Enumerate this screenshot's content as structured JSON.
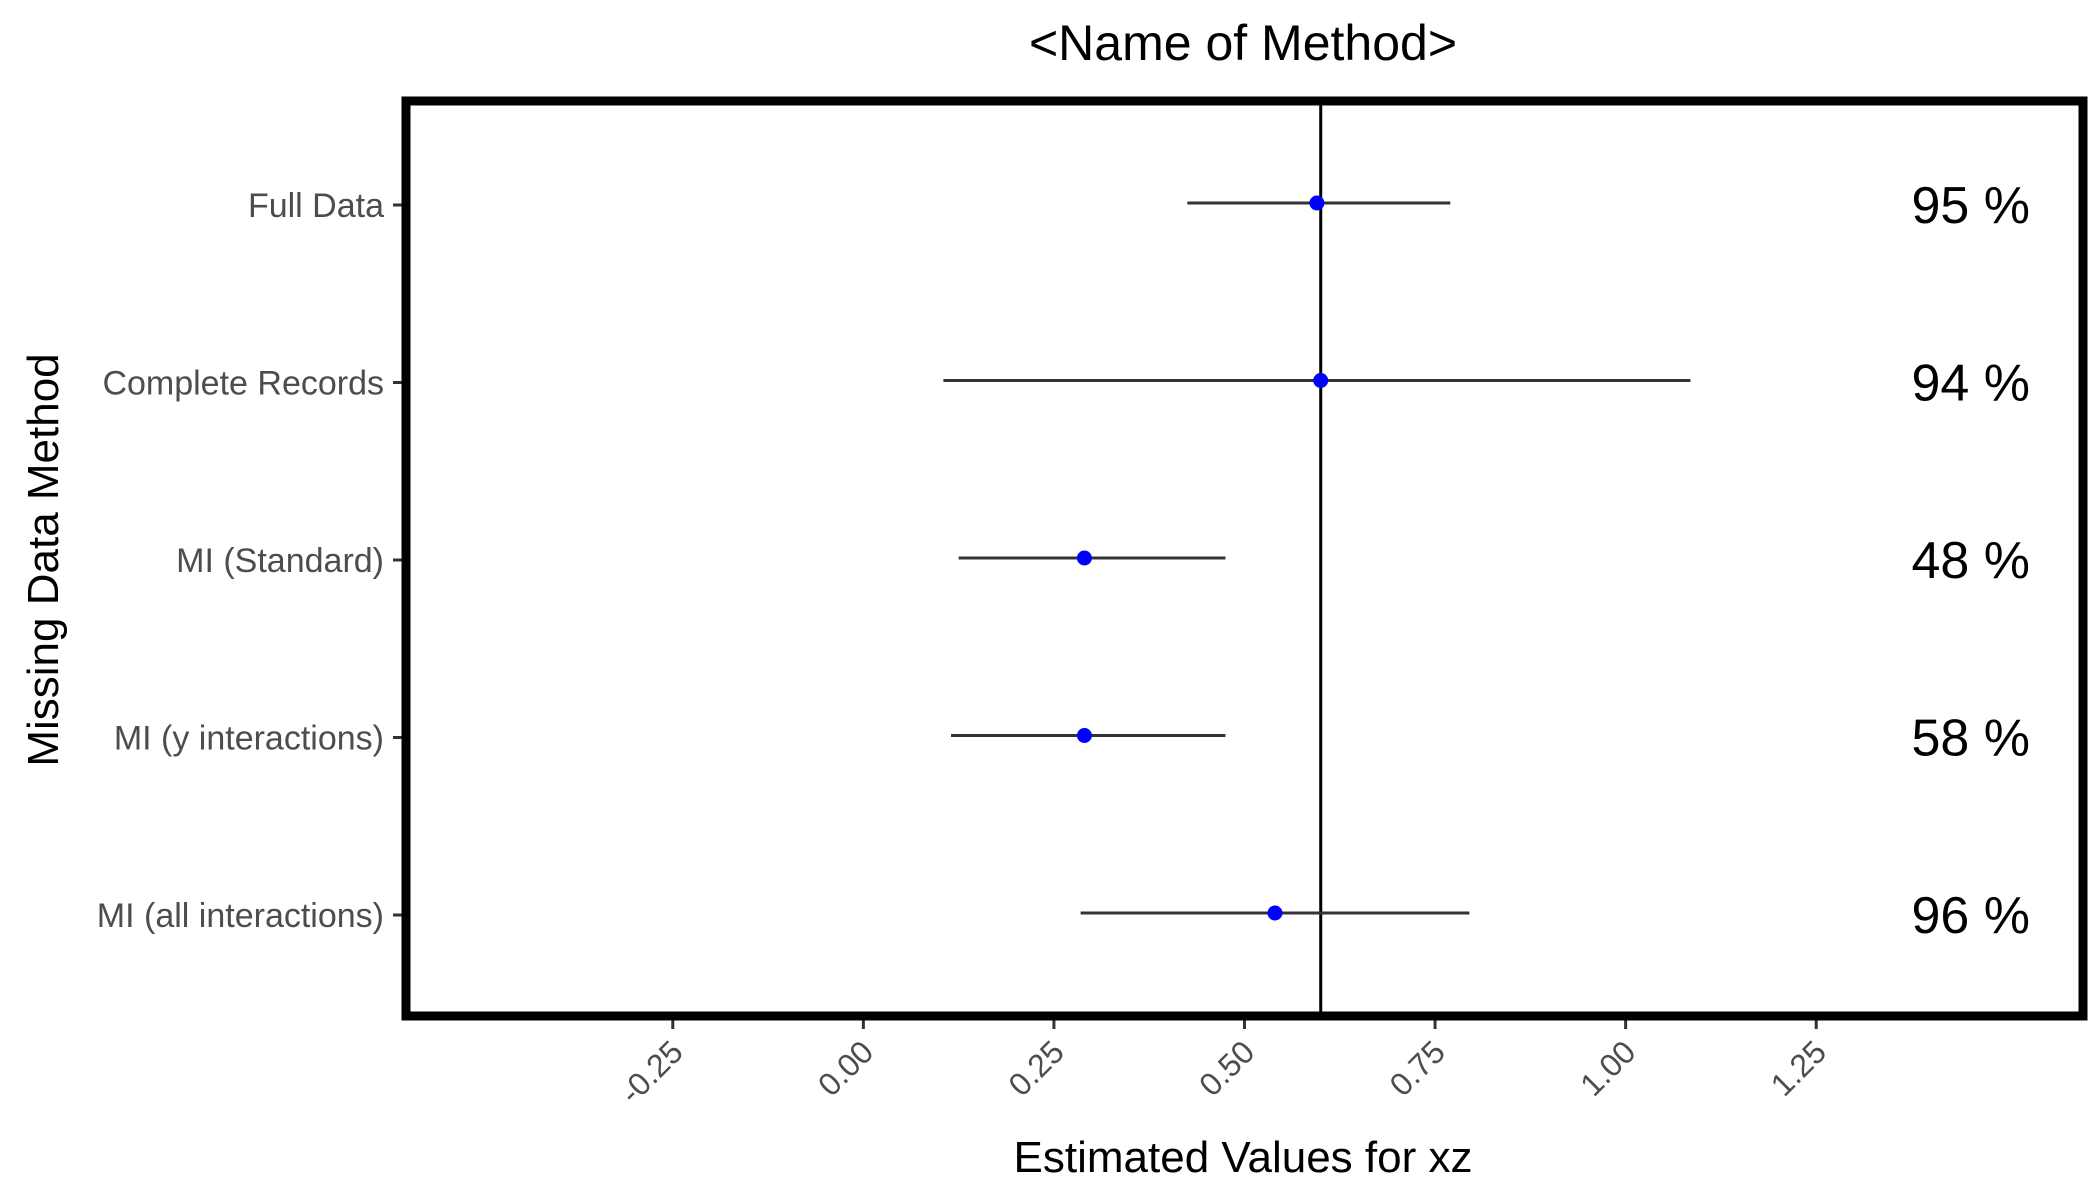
{
  "chart_data": {
    "type": "scatter",
    "title": "<Name of Method>",
    "xlabel": "Estimated Values for xz",
    "ylabel": "Missing Data Method",
    "xlim": [
      -0.6,
      1.6
    ],
    "x_ticks": [
      -0.25,
      0.0,
      0.25,
      0.5,
      0.75,
      1.0,
      1.25
    ],
    "x_tick_labels": [
      "-0.25",
      "0.00",
      "0.25",
      "0.50",
      "0.75",
      "1.00",
      "1.25"
    ],
    "reference_line_x": 0.6,
    "point_color": "#0000ff",
    "grid": false,
    "categories": [
      "Full Data",
      "Complete Records",
      "MI (Standard)",
      "MI (y interactions)",
      "MI (all interactions)"
    ],
    "estimates": [
      0.595,
      0.6,
      0.29,
      0.29,
      0.54
    ],
    "ci_lower": [
      0.425,
      0.105,
      0.125,
      0.115,
      0.285
    ],
    "ci_upper": [
      0.77,
      1.085,
      0.475,
      0.475,
      0.795
    ],
    "coverage_labels": [
      "95 %",
      "94 %",
      "48 %",
      "58 %",
      "96 %"
    ]
  }
}
